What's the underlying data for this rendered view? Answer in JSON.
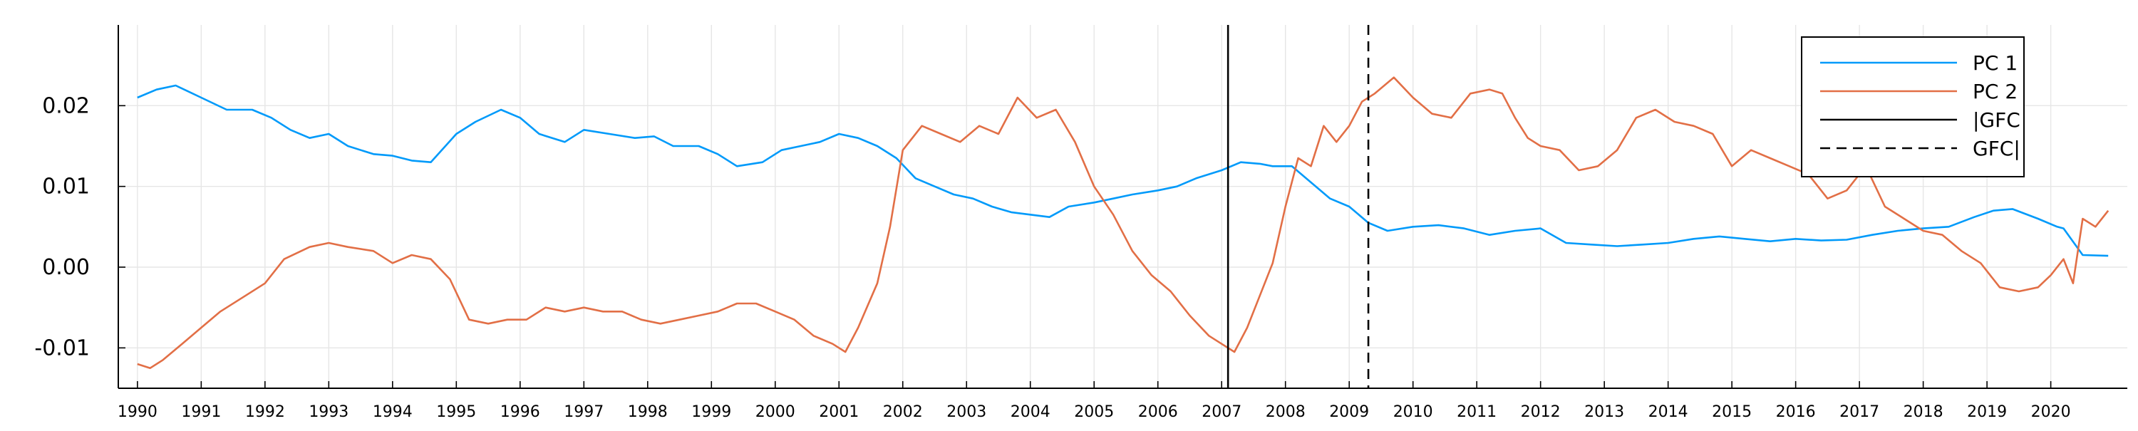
{
  "chart_data": {
    "type": "line",
    "title": "",
    "xlabel": "",
    "ylabel": "",
    "xlim": [
      1989.7,
      2021.2
    ],
    "ylim": [
      -0.015,
      0.03
    ],
    "x_ticks": [
      "1990",
      "1991",
      "1992",
      "1993",
      "1994",
      "1995",
      "1996",
      "1997",
      "1998",
      "1999",
      "2000",
      "2001",
      "2002",
      "2003",
      "2004",
      "2005",
      "2006",
      "2007",
      "2008",
      "2009",
      "2010",
      "2011",
      "2012",
      "2013",
      "2014",
      "2015",
      "2016",
      "2017",
      "2018",
      "2019",
      "2020"
    ],
    "y_ticks": [
      {
        "value": -0.01,
        "label": "-0.01"
      },
      {
        "value": 0.0,
        "label": "0.00"
      },
      {
        "value": 0.01,
        "label": "0.01"
      },
      {
        "value": 0.02,
        "label": "0.02"
      }
    ],
    "grid": true,
    "legend_position": "top-right",
    "series": [
      {
        "name": "PC 1",
        "color": "#009AFA",
        "style": "solid",
        "x": [
          1990.0,
          1990.3,
          1990.6,
          1991.0,
          1991.4,
          1991.8,
          1992.1,
          1992.4,
          1992.7,
          1993.0,
          1993.3,
          1993.7,
          1994.0,
          1994.3,
          1994.6,
          1995.0,
          1995.3,
          1995.7,
          1996.0,
          1996.3,
          1996.7,
          1997.0,
          1997.4,
          1997.8,
          1998.1,
          1998.4,
          1998.8,
          1999.1,
          1999.4,
          1999.8,
          2000.1,
          2000.4,
          2000.7,
          2001.0,
          2001.3,
          2001.6,
          2001.9,
          2002.2,
          2002.5,
          2002.8,
          2003.1,
          2003.4,
          2003.7,
          2004.0,
          2004.3,
          2004.6,
          2005.0,
          2005.3,
          2005.6,
          2006.0,
          2006.3,
          2006.6,
          2007.0,
          2007.3,
          2007.6,
          2007.8,
          2008.1,
          2008.4,
          2008.7,
          2009.0,
          2009.3,
          2009.6,
          2010.0,
          2010.4,
          2010.8,
          2011.2,
          2011.6,
          2012.0,
          2012.4,
          2012.8,
          2013.2,
          2013.6,
          2014.0,
          2014.4,
          2014.8,
          2015.2,
          2015.6,
          2016.0,
          2016.4,
          2016.8,
          2017.2,
          2017.6,
          2018.0,
          2018.4,
          2018.8,
          2019.1,
          2019.4,
          2019.8,
          2020.1,
          2020.2,
          2020.5,
          2020.9
        ],
        "y": [
          0.021,
          0.022,
          0.0225,
          0.021,
          0.0195,
          0.0195,
          0.0185,
          0.017,
          0.016,
          0.0165,
          0.015,
          0.014,
          0.0138,
          0.0132,
          0.013,
          0.0165,
          0.018,
          0.0195,
          0.0185,
          0.0165,
          0.0155,
          0.017,
          0.0165,
          0.016,
          0.0162,
          0.015,
          0.015,
          0.014,
          0.0125,
          0.013,
          0.0145,
          0.015,
          0.0155,
          0.0165,
          0.016,
          0.015,
          0.0135,
          0.011,
          0.01,
          0.009,
          0.0085,
          0.0075,
          0.0068,
          0.0065,
          0.0062,
          0.0075,
          0.008,
          0.0085,
          0.009,
          0.0095,
          0.01,
          0.011,
          0.012,
          0.013,
          0.0128,
          0.0125,
          0.0125,
          0.0105,
          0.0085,
          0.0075,
          0.0055,
          0.0045,
          0.005,
          0.0052,
          0.0048,
          0.004,
          0.0045,
          0.0048,
          0.003,
          0.0028,
          0.0026,
          0.0028,
          0.003,
          0.0035,
          0.0038,
          0.0035,
          0.0032,
          0.0035,
          0.0033,
          0.0034,
          0.004,
          0.0045,
          0.0048,
          0.005,
          0.0062,
          0.007,
          0.0072,
          0.006,
          0.005,
          0.0048,
          0.0015,
          0.0014
        ]
      },
      {
        "name": "PC 2",
        "color": "#E26F46",
        "style": "solid",
        "x": [
          1990.0,
          1990.2,
          1990.4,
          1990.7,
          1991.0,
          1991.3,
          1991.7,
          1992.0,
          1992.3,
          1992.7,
          1993.0,
          1993.3,
          1993.7,
          1994.0,
          1994.3,
          1994.6,
          1994.9,
          1995.2,
          1995.5,
          1995.8,
          1996.1,
          1996.4,
          1996.7,
          1997.0,
          1997.3,
          1997.6,
          1997.9,
          1998.2,
          1998.5,
          1998.8,
          1999.1,
          1999.4,
          1999.7,
          2000.0,
          2000.3,
          2000.6,
          2000.9,
          2001.1,
          2001.3,
          2001.6,
          2001.8,
          2002.0,
          2002.3,
          2002.6,
          2002.9,
          2003.2,
          2003.5,
          2003.8,
          2004.1,
          2004.4,
          2004.7,
          2005.0,
          2005.3,
          2005.6,
          2005.9,
          2006.2,
          2006.5,
          2006.8,
          2007.0,
          2007.2,
          2007.4,
          2007.6,
          2007.8,
          2008.0,
          2008.2,
          2008.4,
          2008.6,
          2008.8,
          2009.0,
          2009.2,
          2009.4,
          2009.7,
          2010.0,
          2010.3,
          2010.6,
          2010.9,
          2011.2,
          2011.4,
          2011.6,
          2011.8,
          2012.0,
          2012.3,
          2012.6,
          2012.9,
          2013.2,
          2013.5,
          2013.8,
          2014.1,
          2014.4,
          2014.7,
          2015.0,
          2015.3,
          2015.6,
          2015.9,
          2016.2,
          2016.5,
          2016.8,
          2017.1,
          2017.4,
          2017.7,
          2018.0,
          2018.3,
          2018.6,
          2018.9,
          2019.2,
          2019.5,
          2019.8,
          2020.0,
          2020.2,
          2020.35,
          2020.5,
          2020.7,
          2020.9
        ],
        "y": [
          -0.012,
          -0.0125,
          -0.0115,
          -0.0095,
          -0.0075,
          -0.0055,
          -0.0035,
          -0.002,
          0.001,
          0.0025,
          0.003,
          0.0025,
          0.002,
          0.0005,
          0.0015,
          0.001,
          -0.0015,
          -0.0065,
          -0.007,
          -0.0065,
          -0.0065,
          -0.005,
          -0.0055,
          -0.005,
          -0.0055,
          -0.0055,
          -0.0065,
          -0.007,
          -0.0065,
          -0.006,
          -0.0055,
          -0.0045,
          -0.0045,
          -0.0055,
          -0.0065,
          -0.0085,
          -0.0095,
          -0.0105,
          -0.0075,
          -0.002,
          0.005,
          0.0145,
          0.0175,
          0.0165,
          0.0155,
          0.0175,
          0.0165,
          0.021,
          0.0185,
          0.0195,
          0.0155,
          0.01,
          0.0065,
          0.002,
          -0.001,
          -0.003,
          -0.006,
          -0.0085,
          -0.0095,
          -0.0105,
          -0.0075,
          -0.0035,
          0.0005,
          0.0075,
          0.0135,
          0.0125,
          0.0175,
          0.0155,
          0.0175,
          0.0205,
          0.0215,
          0.0235,
          0.021,
          0.019,
          0.0185,
          0.0215,
          0.022,
          0.0215,
          0.0185,
          0.016,
          0.015,
          0.0145,
          0.012,
          0.0125,
          0.0145,
          0.0185,
          0.0195,
          0.018,
          0.0175,
          0.0165,
          0.0125,
          0.0145,
          0.0135,
          0.0125,
          0.0115,
          0.0085,
          0.0095,
          0.0125,
          0.0075,
          0.006,
          0.0045,
          0.004,
          0.002,
          0.0005,
          -0.0025,
          -0.003,
          -0.0025,
          -0.001,
          0.001,
          -0.002,
          0.006,
          0.005,
          0.007
        ]
      }
    ],
    "vlines": [
      {
        "name": "|GFC",
        "x": 2007.1,
        "color": "#000000",
        "style": "solid"
      },
      {
        "name": "GFC|",
        "x": 2009.3,
        "color": "#000000",
        "style": "dashed"
      }
    ]
  }
}
